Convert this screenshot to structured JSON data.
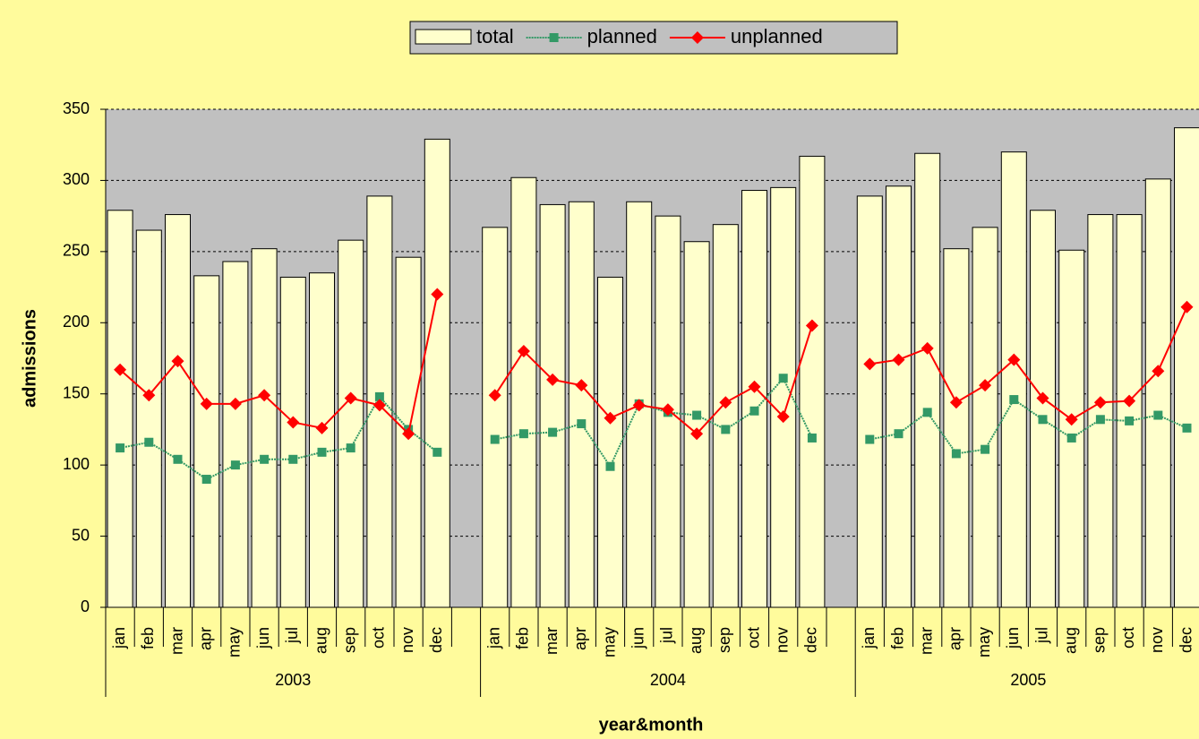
{
  "chart_data": {
    "type": "combo",
    "x_label": "year&month",
    "y_label": "admissions",
    "categories": [
      "jan",
      "feb",
      "mar",
      "apr",
      "may",
      "jun",
      "jul",
      "aug",
      "sep",
      "oct",
      "nov",
      "dec",
      null,
      "jan",
      "feb",
      "mar",
      "apr",
      "may",
      "jun",
      "jul",
      "aug",
      "sep",
      "oct",
      "nov",
      "dec",
      null,
      "jan",
      "feb",
      "mar",
      "apr",
      "may",
      "jun",
      "jul",
      "aug",
      "sep",
      "oct",
      "nov",
      "dec"
    ],
    "category_groups": [
      "2003",
      "2004",
      "2005"
    ],
    "series": [
      {
        "name": "total",
        "type": "bar",
        "color": "#ffffcc",
        "values": [
          279,
          265,
          276,
          233,
          243,
          252,
          232,
          235,
          258,
          289,
          246,
          329,
          null,
          267,
          302,
          283,
          285,
          232,
          285,
          275,
          257,
          269,
          293,
          295,
          317,
          null,
          289,
          296,
          319,
          252,
          267,
          320,
          279,
          251,
          276,
          276,
          301,
          337
        ]
      },
      {
        "name": "planned",
        "type": "line",
        "color": "#339966",
        "values": [
          112,
          116,
          104,
          90,
          100,
          104,
          104,
          109,
          112,
          148,
          125,
          109,
          null,
          118,
          122,
          123,
          129,
          99,
          143,
          137,
          135,
          125,
          138,
          161,
          119,
          null,
          118,
          122,
          137,
          108,
          111,
          146,
          132,
          119,
          132,
          131,
          135,
          126
        ]
      },
      {
        "name": "unplanned",
        "type": "line",
        "color": "#ff0000",
        "values": [
          167,
          149,
          173,
          143,
          143,
          149,
          130,
          126,
          147,
          142,
          122,
          220,
          null,
          149,
          180,
          160,
          156,
          133,
          142,
          139,
          122,
          144,
          155,
          134,
          198,
          null,
          171,
          174,
          182,
          144,
          156,
          174,
          147,
          132,
          144,
          145,
          166,
          211
        ]
      }
    ],
    "ylim": [
      0,
      350
    ],
    "yticks": [
      0,
      50,
      100,
      150,
      200,
      250,
      300,
      350
    ],
    "grid": true,
    "legend": "top"
  }
}
